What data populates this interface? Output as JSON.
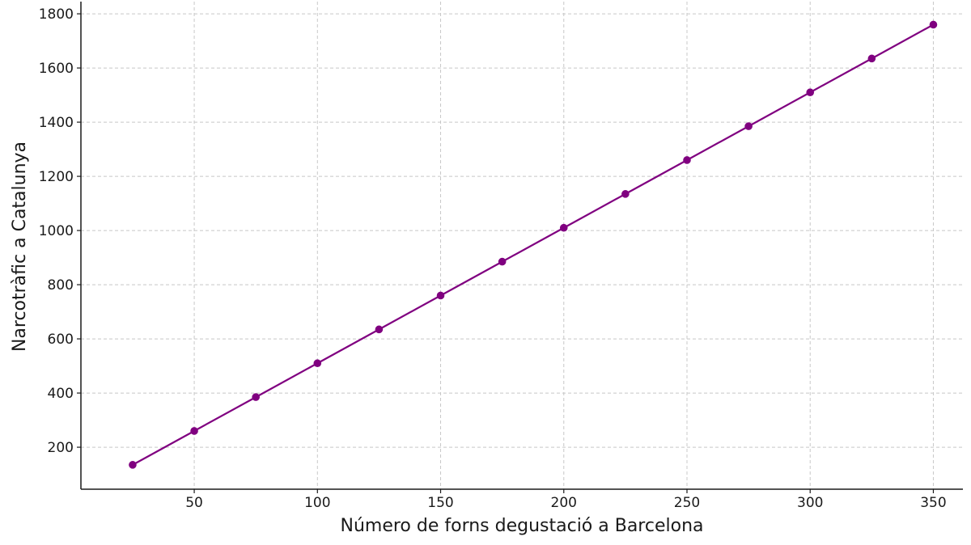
{
  "chart_data": {
    "type": "line",
    "title": "",
    "xlabel": "Número de forns degustació a Barcelona",
    "ylabel": "Narcotràfic a Catalunya",
    "xlim": [
      4,
      362
    ],
    "ylim": [
      45,
      1845
    ],
    "x_ticks": [
      50,
      100,
      150,
      200,
      250,
      300,
      350
    ],
    "y_ticks": [
      200,
      400,
      600,
      800,
      1000,
      1200,
      1400,
      1600,
      1800
    ],
    "grid": true,
    "series": [
      {
        "color": "#800080",
        "marker": "circle",
        "x": [
          25,
          50,
          75,
          100,
          125,
          150,
          175,
          200,
          225,
          250,
          275,
          300,
          325,
          350
        ],
        "y": [
          135,
          260,
          385,
          510,
          635,
          760,
          885,
          1010,
          1135,
          1260,
          1385,
          1510,
          1635,
          1760
        ]
      }
    ]
  }
}
